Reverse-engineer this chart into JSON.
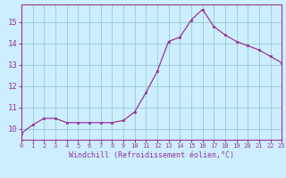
{
  "x": [
    0,
    1,
    2,
    3,
    4,
    5,
    6,
    7,
    8,
    9,
    10,
    11,
    12,
    13,
    14,
    15,
    16,
    17,
    18,
    19,
    20,
    21,
    22,
    23
  ],
  "y": [
    9.8,
    10.2,
    10.5,
    10.5,
    10.3,
    10.3,
    10.3,
    10.3,
    10.3,
    10.4,
    10.8,
    11.7,
    12.7,
    14.1,
    14.3,
    15.1,
    15.6,
    14.8,
    14.4,
    14.1,
    13.9,
    13.7,
    13.4,
    13.1
  ],
  "xlim": [
    0,
    23
  ],
  "ylim": [
    9.5,
    15.83
  ],
  "yticks": [
    10,
    11,
    12,
    13,
    14,
    15
  ],
  "xticks": [
    0,
    1,
    2,
    3,
    4,
    5,
    6,
    7,
    8,
    9,
    10,
    11,
    12,
    13,
    14,
    15,
    16,
    17,
    18,
    19,
    20,
    21,
    22,
    23
  ],
  "xlabel": "Windchill (Refroidissement éolien,°C)",
  "line_color": "#993399",
  "marker_color": "#993399",
  "bg_color": "#cceeff",
  "grid_color": "#99cccc",
  "tick_label_color": "#993399",
  "axis_label_color": "#993399",
  "spine_color": "#993399"
}
